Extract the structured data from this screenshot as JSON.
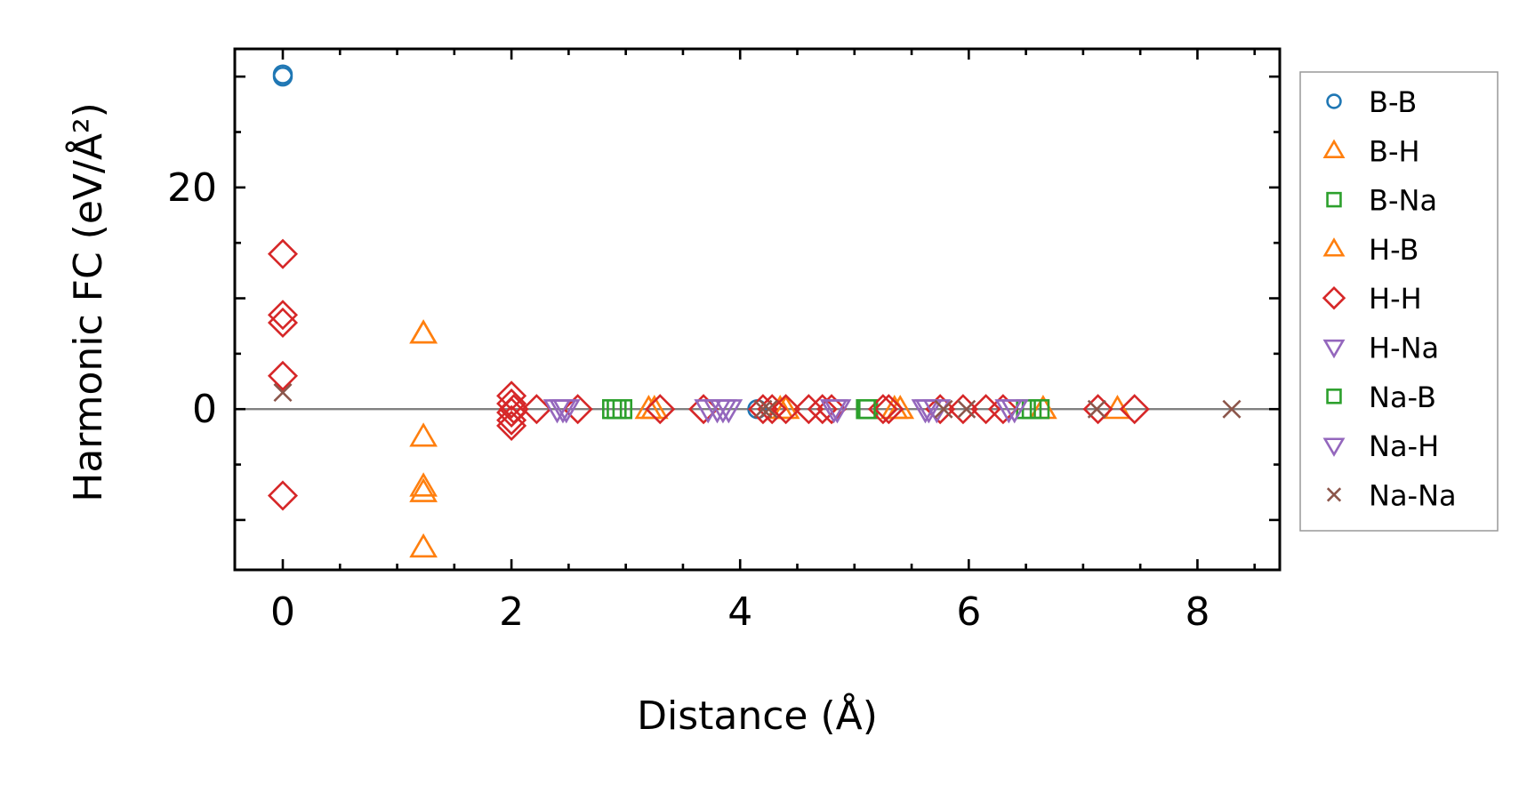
{
  "chart_data": {
    "type": "scatter",
    "xlabel": "Distance (Å)",
    "ylabel": "Harmonic FC (eV/Å²)",
    "xlim": [
      -0.42,
      8.72
    ],
    "ylim": [
      -14.5,
      32.5
    ],
    "x_ticks": [
      0,
      2,
      4,
      6,
      8
    ],
    "y_ticks": [
      0,
      20
    ],
    "x_minor_step": 0.5,
    "y_minor_step": 5,
    "zero_line": true,
    "grid": false,
    "legend_position": "right",
    "series": [
      {
        "name": "B-B",
        "marker": "circle",
        "color": "#1f77b4",
        "x": [
          0,
          0,
          4.15
        ],
        "y": [
          30.2,
          30.0,
          0.0
        ]
      },
      {
        "name": "B-H",
        "marker": "triangle-up",
        "color": "#ff7f0e",
        "x": [
          1.23,
          1.23,
          1.23,
          1.23,
          1.23,
          3.2,
          4.4,
          5.35,
          6.65,
          7.3
        ],
        "y": [
          6.8,
          -2.5,
          -7.0,
          -7.5,
          -12.5,
          0.0,
          0.0,
          0.0,
          0.0,
          0.0
        ]
      },
      {
        "name": "B-Na",
        "marker": "square",
        "color": "#2ca02c",
        "x": [
          2.88,
          2.97,
          5.12,
          6.5,
          6.62
        ],
        "y": [
          0.0,
          0.0,
          0.0,
          0.0,
          0.0
        ]
      },
      {
        "name": "H-B",
        "marker": "triangle-up",
        "color": "#ff7f0e",
        "x": [
          1.23,
          3.25,
          4.35,
          5.4
        ],
        "y": [
          6.8,
          0.0,
          0.0,
          0.0
        ]
      },
      {
        "name": "H-H",
        "marker": "diamond",
        "color": "#d62728",
        "x": [
          0,
          0,
          0,
          0,
          0,
          2.0,
          2.0,
          2.0,
          2.0,
          2.0,
          2.02,
          2.22,
          2.58,
          3.3,
          3.68,
          4.2,
          4.28,
          4.4,
          4.6,
          4.72,
          4.8,
          5.25,
          5.3,
          5.75,
          5.95,
          6.15,
          6.3,
          7.13,
          7.45
        ],
        "y": [
          14.0,
          8.5,
          7.8,
          3.0,
          -7.8,
          1.2,
          0.5,
          -0.3,
          -1.0,
          -1.5,
          0.0,
          0.0,
          0.0,
          0.0,
          0.0,
          0.0,
          0.0,
          0.0,
          0.0,
          0.0,
          0.0,
          0.0,
          0.0,
          0.0,
          0.0,
          0.0,
          0.0,
          0.0,
          0.0
        ]
      },
      {
        "name": "H-Na",
        "marker": "triangle-down",
        "color": "#9467bd",
        "x": [
          2.4,
          2.48,
          3.8,
          3.9,
          4.85,
          5.62,
          5.72,
          6.35
        ],
        "y": [
          0.0,
          0.0,
          0.0,
          0.0,
          0.0,
          0.0,
          0.0,
          0.0
        ]
      },
      {
        "name": "Na-B",
        "marker": "square",
        "color": "#2ca02c",
        "x": [
          2.92,
          5.1,
          6.55
        ],
        "y": [
          0.0,
          0.0,
          0.0
        ]
      },
      {
        "name": "Na-H",
        "marker": "triangle-down",
        "color": "#9467bd",
        "x": [
          2.45,
          3.72,
          3.85,
          4.82,
          5.65,
          6.4
        ],
        "y": [
          0.0,
          0.0,
          0.0,
          0.0,
          0.0,
          0.0
        ]
      },
      {
        "name": "Na-Na",
        "marker": "x",
        "color": "#8c564b",
        "x": [
          0,
          4.2,
          4.25,
          5.78,
          5.98,
          7.12,
          8.3
        ],
        "y": [
          1.5,
          0.0,
          0.0,
          0.0,
          0.0,
          0.0,
          0.0
        ]
      }
    ]
  }
}
